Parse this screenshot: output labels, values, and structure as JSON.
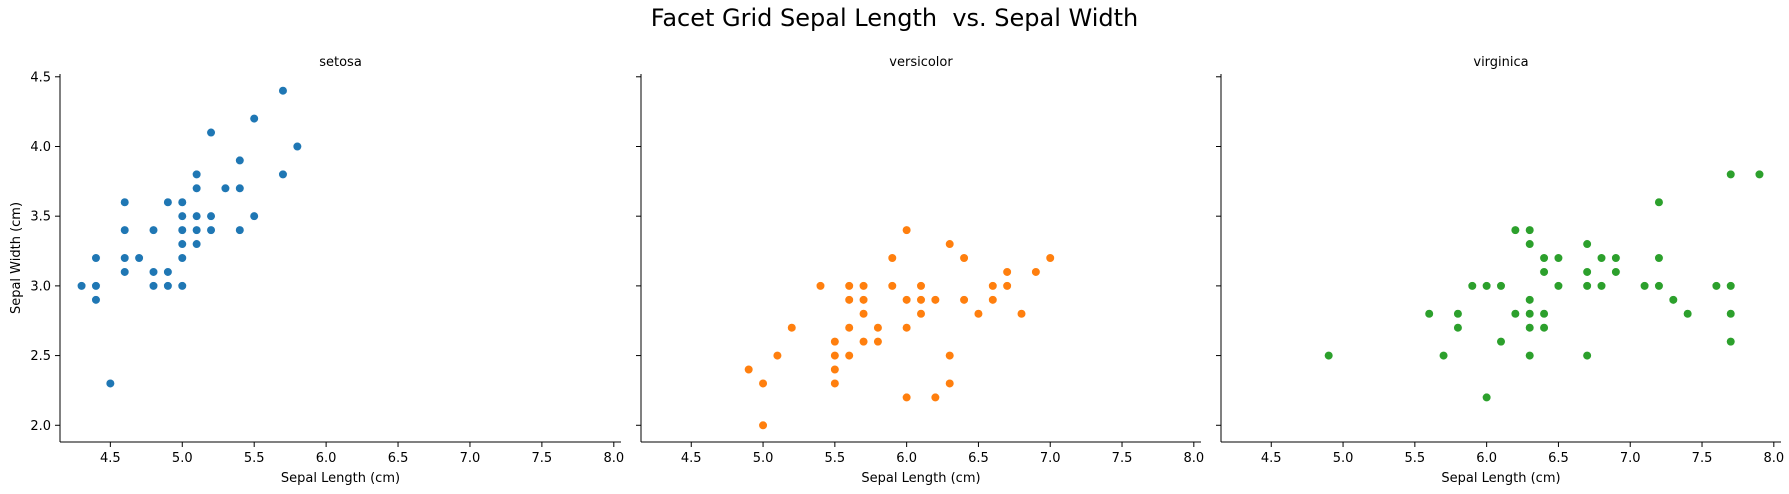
{
  "figure": {
    "title": "Facet Grid Sepal Length  vs. Sepal Width"
  },
  "chart_data": {
    "type": "scatter",
    "title": "Facet Grid Sepal Length  vs. Sepal Width",
    "xlabel": "Sepal Length (cm)",
    "ylabel": "Sepal Width (cm)",
    "xlim": [
      4.15,
      8.05
    ],
    "ylim": [
      1.88,
      4.52
    ],
    "xticks": [
      "4.5",
      "5.0",
      "5.5",
      "6.0",
      "6.5",
      "7.0",
      "7.5",
      "8.0"
    ],
    "yticks": [
      "2.0",
      "2.5",
      "3.0",
      "3.5",
      "4.0",
      "4.5"
    ],
    "xtick_values": [
      4.5,
      5.0,
      5.5,
      6.0,
      6.5,
      7.0,
      7.5,
      8.0
    ],
    "ytick_values": [
      2.0,
      2.5,
      3.0,
      3.5,
      4.0,
      4.5
    ],
    "grid": false,
    "sharey": true,
    "facets": [
      {
        "name": "setosa",
        "color": "#1f77b4",
        "points": [
          [
            4.3,
            3.0
          ],
          [
            4.4,
            3.2
          ],
          [
            4.4,
            3.0
          ],
          [
            4.4,
            2.9
          ],
          [
            4.5,
            2.3
          ],
          [
            4.6,
            3.6
          ],
          [
            4.6,
            3.4
          ],
          [
            4.6,
            3.2
          ],
          [
            4.6,
            3.1
          ],
          [
            4.7,
            3.2
          ],
          [
            4.8,
            3.4
          ],
          [
            4.8,
            3.1
          ],
          [
            4.8,
            3.0
          ],
          [
            4.9,
            3.6
          ],
          [
            4.9,
            3.1
          ],
          [
            4.9,
            3.0
          ],
          [
            5.0,
            3.6
          ],
          [
            5.0,
            3.5
          ],
          [
            5.0,
            3.4
          ],
          [
            5.0,
            3.3
          ],
          [
            5.0,
            3.2
          ],
          [
            5.0,
            3.0
          ],
          [
            5.1,
            3.8
          ],
          [
            5.1,
            3.7
          ],
          [
            5.1,
            3.5
          ],
          [
            5.1,
            3.4
          ],
          [
            5.1,
            3.3
          ],
          [
            5.2,
            4.1
          ],
          [
            5.2,
            3.5
          ],
          [
            5.2,
            3.4
          ],
          [
            5.3,
            3.7
          ],
          [
            5.4,
            3.9
          ],
          [
            5.4,
            3.7
          ],
          [
            5.4,
            3.4
          ],
          [
            5.5,
            4.2
          ],
          [
            5.5,
            3.5
          ],
          [
            5.7,
            4.4
          ],
          [
            5.7,
            3.8
          ],
          [
            5.8,
            4.0
          ]
        ]
      },
      {
        "name": "versicolor",
        "color": "#ff7f0e",
        "points": [
          [
            4.9,
            2.4
          ],
          [
            5.0,
            2.3
          ],
          [
            5.0,
            2.0
          ],
          [
            5.1,
            2.5
          ],
          [
            5.2,
            2.7
          ],
          [
            5.4,
            3.0
          ],
          [
            5.5,
            2.6
          ],
          [
            5.5,
            2.5
          ],
          [
            5.5,
            2.4
          ],
          [
            5.5,
            2.3
          ],
          [
            5.6,
            3.0
          ],
          [
            5.6,
            2.9
          ],
          [
            5.6,
            2.7
          ],
          [
            5.6,
            2.5
          ],
          [
            5.7,
            3.0
          ],
          [
            5.7,
            2.9
          ],
          [
            5.7,
            2.8
          ],
          [
            5.7,
            2.6
          ],
          [
            5.8,
            2.7
          ],
          [
            5.8,
            2.6
          ],
          [
            5.9,
            3.2
          ],
          [
            5.9,
            3.0
          ],
          [
            6.0,
            3.4
          ],
          [
            6.0,
            2.9
          ],
          [
            6.0,
            2.7
          ],
          [
            6.0,
            2.2
          ],
          [
            6.1,
            3.0
          ],
          [
            6.1,
            2.9
          ],
          [
            6.1,
            2.8
          ],
          [
            6.2,
            2.9
          ],
          [
            6.2,
            2.2
          ],
          [
            6.3,
            3.3
          ],
          [
            6.3,
            2.5
          ],
          [
            6.3,
            2.3
          ],
          [
            6.4,
            3.2
          ],
          [
            6.4,
            2.9
          ],
          [
            6.5,
            2.8
          ],
          [
            6.6,
            3.0
          ],
          [
            6.6,
            2.9
          ],
          [
            6.7,
            3.1
          ],
          [
            6.7,
            3.0
          ],
          [
            6.8,
            2.8
          ],
          [
            6.9,
            3.1
          ],
          [
            7.0,
            3.2
          ]
        ]
      },
      {
        "name": "virginica",
        "color": "#2ca02c",
        "points": [
          [
            4.9,
            2.5
          ],
          [
            5.6,
            2.8
          ],
          [
            5.7,
            2.5
          ],
          [
            5.8,
            2.8
          ],
          [
            5.8,
            2.7
          ],
          [
            5.9,
            3.0
          ],
          [
            6.0,
            3.0
          ],
          [
            6.0,
            2.2
          ],
          [
            6.1,
            3.0
          ],
          [
            6.1,
            2.6
          ],
          [
            6.2,
            3.4
          ],
          [
            6.2,
            2.8
          ],
          [
            6.3,
            3.4
          ],
          [
            6.3,
            3.3
          ],
          [
            6.3,
            2.9
          ],
          [
            6.3,
            2.8
          ],
          [
            6.3,
            2.7
          ],
          [
            6.3,
            2.5
          ],
          [
            6.4,
            3.2
          ],
          [
            6.4,
            3.1
          ],
          [
            6.4,
            2.8
          ],
          [
            6.4,
            2.7
          ],
          [
            6.5,
            3.2
          ],
          [
            6.5,
            3.0
          ],
          [
            6.7,
            3.3
          ],
          [
            6.7,
            3.1
          ],
          [
            6.7,
            3.0
          ],
          [
            6.7,
            2.5
          ],
          [
            6.8,
            3.2
          ],
          [
            6.8,
            3.0
          ],
          [
            6.9,
            3.2
          ],
          [
            6.9,
            3.1
          ],
          [
            7.1,
            3.0
          ],
          [
            7.2,
            3.6
          ],
          [
            7.2,
            3.2
          ],
          [
            7.2,
            3.0
          ],
          [
            7.3,
            2.9
          ],
          [
            7.4,
            2.8
          ],
          [
            7.6,
            3.0
          ],
          [
            7.7,
            3.8
          ],
          [
            7.7,
            3.0
          ],
          [
            7.7,
            2.8
          ],
          [
            7.7,
            2.6
          ],
          [
            7.9,
            3.8
          ]
        ]
      }
    ]
  }
}
